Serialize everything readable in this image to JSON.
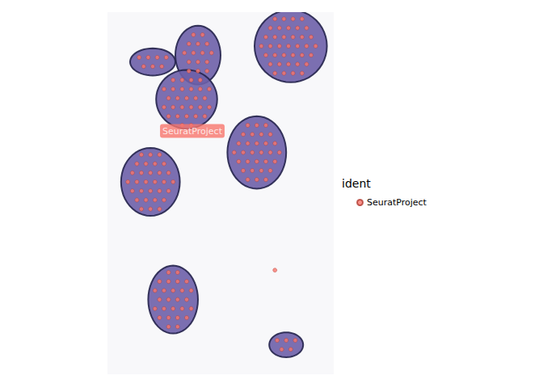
{
  "chart_data": {
    "type": "scatter",
    "xlim": [
      0,
      100
    ],
    "ylim": [
      0,
      160
    ],
    "tick_labels": false,
    "grid": false,
    "legend": "right",
    "legend_title": "ident",
    "annotations": [
      {
        "text": "SeuratProject",
        "x": 37.5,
        "y": 52.5
      }
    ],
    "tissue": [
      {
        "cx": 81,
        "cy": 15,
        "rx": 16,
        "ry": 16
      },
      {
        "cx": 40,
        "cy": 19,
        "rx": 10,
        "ry": 13
      },
      {
        "cx": 20,
        "cy": 22,
        "rx": 10,
        "ry": 6
      },
      {
        "cx": 35,
        "cy": 38.5,
        "rx": 13.5,
        "ry": 13
      },
      {
        "cx": 66,
        "cy": 62,
        "rx": 13,
        "ry": 16
      },
      {
        "cx": 19,
        "cy": 75,
        "rx": 13,
        "ry": 15
      },
      {
        "cx": 29,
        "cy": 127,
        "rx": 11,
        "ry": 15
      },
      {
        "cx": 79,
        "cy": 147,
        "rx": 7.5,
        "ry": 5.5
      }
    ],
    "series": [
      {
        "name": "SeuratProject",
        "color": "#F8766D",
        "marker": "circle",
        "values": [
          [
            74,
            3
          ],
          [
            78,
            3
          ],
          [
            82,
            3
          ],
          [
            86,
            3
          ],
          [
            72,
            7
          ],
          [
            76,
            7
          ],
          [
            80,
            7
          ],
          [
            84,
            7
          ],
          [
            88,
            7
          ],
          [
            70,
            11
          ],
          [
            74,
            11
          ],
          [
            78,
            11
          ],
          [
            82,
            11
          ],
          [
            86,
            11
          ],
          [
            90,
            11
          ],
          [
            68,
            15
          ],
          [
            72,
            15
          ],
          [
            76,
            15
          ],
          [
            80,
            15
          ],
          [
            84,
            15
          ],
          [
            88,
            15
          ],
          [
            92,
            15
          ],
          [
            70,
            19
          ],
          [
            74,
            19
          ],
          [
            78,
            19
          ],
          [
            82,
            19
          ],
          [
            86,
            19
          ],
          [
            90,
            19
          ],
          [
            72,
            23
          ],
          [
            76,
            23
          ],
          [
            80,
            23
          ],
          [
            84,
            23
          ],
          [
            88,
            23
          ],
          [
            74,
            27
          ],
          [
            78,
            27
          ],
          [
            82,
            27
          ],
          [
            86,
            27
          ],
          [
            38,
            10
          ],
          [
            42,
            10
          ],
          [
            36,
            14
          ],
          [
            40,
            14
          ],
          [
            44,
            14
          ],
          [
            34,
            18
          ],
          [
            38,
            18
          ],
          [
            42,
            18
          ],
          [
            46,
            18
          ],
          [
            36,
            22
          ],
          [
            40,
            22
          ],
          [
            44,
            22
          ],
          [
            36,
            26
          ],
          [
            40,
            26
          ],
          [
            44,
            26
          ],
          [
            14,
            20
          ],
          [
            18,
            20
          ],
          [
            22,
            20
          ],
          [
            26,
            20
          ],
          [
            16,
            24
          ],
          [
            20,
            24
          ],
          [
            24,
            24
          ],
          [
            29,
            30
          ],
          [
            33,
            30
          ],
          [
            37,
            30
          ],
          [
            41,
            30
          ],
          [
            25,
            34
          ],
          [
            29,
            34
          ],
          [
            33,
            34
          ],
          [
            37,
            34
          ],
          [
            41,
            34
          ],
          [
            45,
            34
          ],
          [
            27,
            38
          ],
          [
            31,
            38
          ],
          [
            35,
            38
          ],
          [
            39,
            38
          ],
          [
            43,
            38
          ],
          [
            25,
            42
          ],
          [
            29,
            42
          ],
          [
            33,
            42
          ],
          [
            37,
            42
          ],
          [
            41,
            42
          ],
          [
            45,
            42
          ],
          [
            27,
            46
          ],
          [
            31,
            46
          ],
          [
            35,
            46
          ],
          [
            39,
            46
          ],
          [
            43,
            46
          ],
          [
            33,
            50
          ],
          [
            37,
            50
          ],
          [
            62,
            50
          ],
          [
            66,
            50
          ],
          [
            70,
            50
          ],
          [
            60,
            54
          ],
          [
            64,
            54
          ],
          [
            68,
            54
          ],
          [
            72,
            54
          ],
          [
            58,
            58
          ],
          [
            62,
            58
          ],
          [
            66,
            58
          ],
          [
            70,
            58
          ],
          [
            74,
            58
          ],
          [
            56,
            62
          ],
          [
            60,
            62
          ],
          [
            64,
            62
          ],
          [
            68,
            62
          ],
          [
            72,
            62
          ],
          [
            76,
            62
          ],
          [
            58,
            66
          ],
          [
            62,
            66
          ],
          [
            66,
            66
          ],
          [
            70,
            66
          ],
          [
            74,
            66
          ],
          [
            60,
            70
          ],
          [
            64,
            70
          ],
          [
            68,
            70
          ],
          [
            72,
            70
          ],
          [
            62,
            74
          ],
          [
            66,
            74
          ],
          [
            70,
            74
          ],
          [
            15,
            63
          ],
          [
            19,
            63
          ],
          [
            23,
            63
          ],
          [
            13,
            67
          ],
          [
            17,
            67
          ],
          [
            21,
            67
          ],
          [
            25,
            67
          ],
          [
            11,
            71
          ],
          [
            15,
            71
          ],
          [
            19,
            71
          ],
          [
            23,
            71
          ],
          [
            27,
            71
          ],
          [
            9,
            75
          ],
          [
            13,
            75
          ],
          [
            17,
            75
          ],
          [
            21,
            75
          ],
          [
            25,
            75
          ],
          [
            29,
            75
          ],
          [
            11,
            79
          ],
          [
            15,
            79
          ],
          [
            19,
            79
          ],
          [
            23,
            79
          ],
          [
            27,
            79
          ],
          [
            13,
            83
          ],
          [
            17,
            83
          ],
          [
            21,
            83
          ],
          [
            25,
            83
          ],
          [
            15,
            87
          ],
          [
            19,
            87
          ],
          [
            23,
            87
          ],
          [
            27,
            115
          ],
          [
            31,
            115
          ],
          [
            23,
            119
          ],
          [
            27,
            119
          ],
          [
            31,
            119
          ],
          [
            35,
            119
          ],
          [
            21,
            123
          ],
          [
            25,
            123
          ],
          [
            29,
            123
          ],
          [
            33,
            123
          ],
          [
            37,
            123
          ],
          [
            23,
            127
          ],
          [
            27,
            127
          ],
          [
            31,
            127
          ],
          [
            35,
            127
          ],
          [
            21,
            131
          ],
          [
            25,
            131
          ],
          [
            29,
            131
          ],
          [
            33,
            131
          ],
          [
            37,
            131
          ],
          [
            23,
            135
          ],
          [
            27,
            135
          ],
          [
            31,
            135
          ],
          [
            35,
            135
          ],
          [
            27,
            139
          ],
          [
            31,
            139
          ],
          [
            75,
            145
          ],
          [
            79,
            145
          ],
          [
            83,
            145
          ],
          [
            77,
            149
          ],
          [
            81,
            149
          ],
          [
            74,
            114
          ]
        ]
      }
    ]
  }
}
